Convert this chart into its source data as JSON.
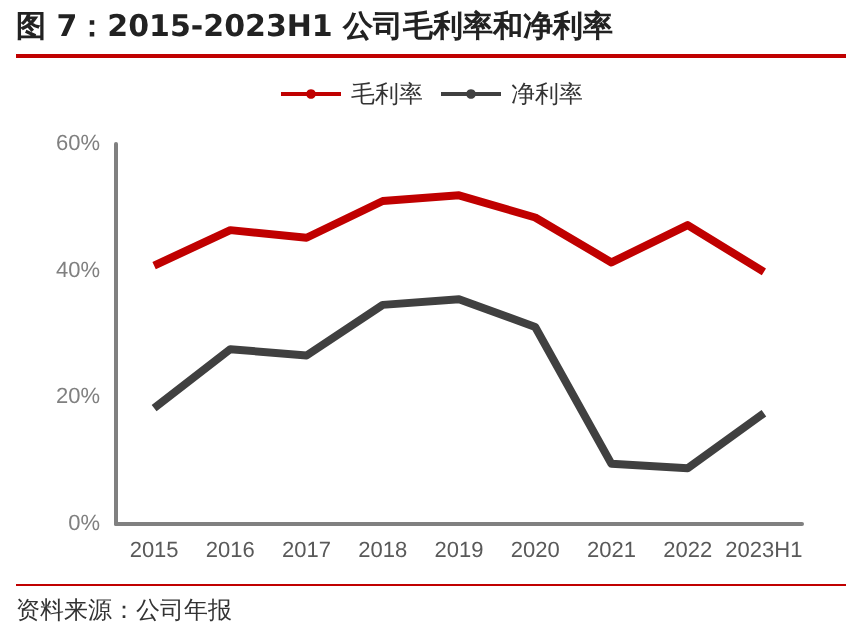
{
  "chart_data": {
    "type": "line",
    "title": "图 7：2015-2023H1 公司毛利率和净利率",
    "categories": [
      "2015",
      "2016",
      "2017",
      "2018",
      "2019",
      "2020",
      "2021",
      "2022",
      "2023H1"
    ],
    "series": [
      {
        "name": "毛利率",
        "color": "#c00000",
        "values": [
          40.8,
          46.4,
          45.2,
          51.0,
          51.9,
          48.4,
          41.3,
          47.2,
          39.8
        ]
      },
      {
        "name": "净利率",
        "color": "#404040",
        "values": [
          18.3,
          27.6,
          26.6,
          34.6,
          35.5,
          31.1,
          9.5,
          8.8,
          17.5
        ]
      }
    ],
    "ylim": [
      0,
      60
    ],
    "yticks": [
      {
        "value": 0,
        "label": "0%"
      },
      {
        "value": 20,
        "label": "20%"
      },
      {
        "value": 40,
        "label": "40%"
      },
      {
        "value": 60,
        "label": "60%"
      }
    ],
    "grid": false,
    "legend": "top",
    "marker": "none",
    "annotations": [
      "资料来源：公司年报"
    ]
  }
}
